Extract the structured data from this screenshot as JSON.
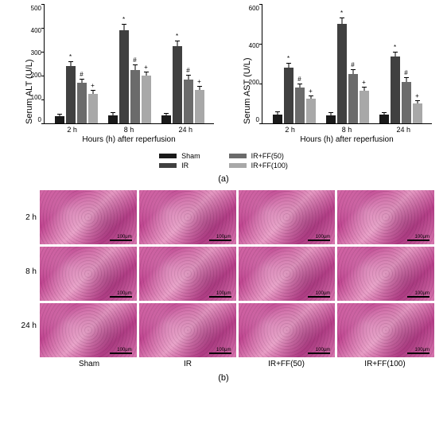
{
  "panelA": {
    "charts": [
      {
        "y_label": "Serum ALT (U/L)",
        "ylim": [
          0,
          500
        ],
        "ytick_step": 100,
        "yticks": [
          "0",
          "100",
          "200",
          "300",
          "400",
          "500"
        ],
        "x_label": "Hours (h) after reperfusion",
        "groups": [
          {
            "label": "2 h",
            "bars": [
              {
                "v": 30,
                "e": 8,
                "c": "#1a1a1a"
              },
              {
                "v": 240,
                "e": 18,
                "c": "#404040",
                "sig": "*"
              },
              {
                "v": 170,
                "e": 15,
                "c": "#6b6b6b",
                "sig": "#"
              },
              {
                "v": 125,
                "e": 12,
                "c": "#a8a8a8",
                "sig": "+"
              }
            ]
          },
          {
            "label": "8 h",
            "bars": [
              {
                "v": 35,
                "e": 8,
                "c": "#1a1a1a"
              },
              {
                "v": 390,
                "e": 22,
                "c": "#404040",
                "sig": "*"
              },
              {
                "v": 225,
                "e": 18,
                "c": "#6b6b6b",
                "sig": "#"
              },
              {
                "v": 200,
                "e": 15,
                "c": "#a8a8a8",
                "sig": "+"
              }
            ]
          },
          {
            "label": "24 h",
            "bars": [
              {
                "v": 32,
                "e": 8,
                "c": "#1a1a1a"
              },
              {
                "v": 325,
                "e": 20,
                "c": "#404040",
                "sig": "*"
              },
              {
                "v": 185,
                "e": 15,
                "c": "#6b6b6b",
                "sig": "#"
              },
              {
                "v": 140,
                "e": 12,
                "c": "#a8a8a8",
                "sig": "+"
              }
            ]
          }
        ]
      },
      {
        "y_label": "Serum AST (U/L)",
        "ylim": [
          0,
          600
        ],
        "ytick_step": 200,
        "yticks": [
          "0",
          "200",
          "400",
          "600"
        ],
        "x_label": "Hours (h) after reperfusion",
        "groups": [
          {
            "label": "2 h",
            "bars": [
              {
                "v": 45,
                "e": 10,
                "c": "#1a1a1a"
              },
              {
                "v": 280,
                "e": 20,
                "c": "#404040",
                "sig": "*"
              },
              {
                "v": 180,
                "e": 15,
                "c": "#6b6b6b",
                "sig": "#"
              },
              {
                "v": 125,
                "e": 12,
                "c": "#a8a8a8",
                "sig": "+"
              }
            ]
          },
          {
            "label": "8 h",
            "bars": [
              {
                "v": 42,
                "e": 10,
                "c": "#1a1a1a"
              },
              {
                "v": 500,
                "e": 28,
                "c": "#404040",
                "sig": "*"
              },
              {
                "v": 250,
                "e": 20,
                "c": "#6b6b6b",
                "sig": "#"
              },
              {
                "v": 165,
                "e": 15,
                "c": "#a8a8a8",
                "sig": "+"
              }
            ]
          },
          {
            "label": "24 h",
            "bars": [
              {
                "v": 44,
                "e": 10,
                "c": "#1a1a1a"
              },
              {
                "v": 335,
                "e": 22,
                "c": "#404040",
                "sig": "*"
              },
              {
                "v": 210,
                "e": 18,
                "c": "#6b6b6b",
                "sig": "#"
              },
              {
                "v": 100,
                "e": 12,
                "c": "#a8a8a8",
                "sig": "+"
              }
            ]
          }
        ]
      }
    ],
    "legend": [
      {
        "label": "Sham",
        "color": "#1a1a1a"
      },
      {
        "label": "IR",
        "color": "#404040"
      },
      {
        "label": "IR+FF(50)",
        "color": "#6b6b6b"
      },
      {
        "label": "IR+FF(100)",
        "color": "#a8a8a8"
      }
    ],
    "panel_label": "(a)"
  },
  "panelB": {
    "rows": [
      "2 h",
      "8 h",
      "24 h"
    ],
    "cols": [
      "Sham",
      "IR",
      "IR+FF(50)",
      "IR+FF(100)"
    ],
    "scale_text": "100μm",
    "panel_label": "(b)"
  }
}
